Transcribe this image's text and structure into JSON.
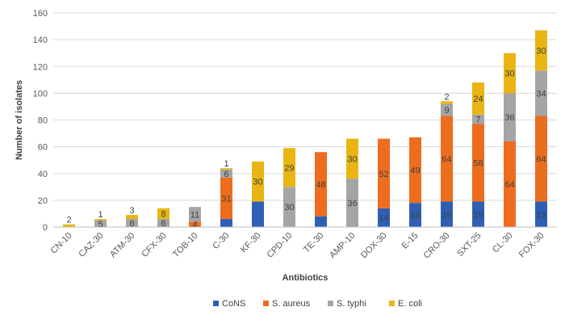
{
  "chart_data": {
    "type": "bar",
    "stacked": true,
    "categories": [
      "CN-10",
      "CAZ-30",
      "ATM-30",
      "CFX-30",
      "TOB-10",
      "C-30",
      "KF-30",
      "CPD-10",
      "TE-30",
      "AMP-10",
      "DOX-30",
      "E-15",
      "CRO-30",
      "SXT-25",
      "CL-30",
      "FOX-30"
    ],
    "series": [
      {
        "name": "CoNS",
        "color": "#2e5fb5",
        "values": [
          0,
          0,
          0,
          0,
          0,
          6,
          19,
          0,
          8,
          0,
          14,
          18,
          19,
          19,
          0,
          19
        ],
        "labels": [
          null,
          null,
          null,
          null,
          null,
          null,
          null,
          null,
          null,
          null,
          "14",
          "18",
          "19",
          "19",
          null,
          "19"
        ]
      },
      {
        "name": "S. aureus",
        "color": "#ed6d1f",
        "values": [
          0,
          0,
          0,
          0,
          4,
          31,
          0,
          0,
          48,
          0,
          52,
          49,
          64,
          58,
          64,
          64
        ],
        "labels": [
          null,
          null,
          null,
          null,
          "4",
          "31",
          null,
          null,
          "48",
          null,
          "52",
          "49",
          "64",
          "58",
          "64",
          "64"
        ]
      },
      {
        "name": "S. typhi",
        "color": "#a5a5a5",
        "values": [
          0,
          5,
          6,
          6,
          11,
          6,
          0,
          30,
          0,
          36,
          0,
          0,
          9,
          7,
          36,
          34
        ],
        "labels": [
          null,
          "5",
          "6",
          "6",
          "11",
          "6",
          null,
          "30",
          null,
          "36",
          null,
          null,
          "9",
          "7",
          "36",
          "34"
        ]
      },
      {
        "name": "E. coli",
        "color": "#e8b515",
        "values": [
          2,
          1,
          3,
          8,
          0,
          1,
          30,
          29,
          0,
          30,
          0,
          0,
          2,
          24,
          30,
          30
        ],
        "labels": [
          "2",
          "1",
          "3",
          "8",
          null,
          "1",
          "30",
          "29",
          null,
          "30",
          null,
          null,
          "2",
          "24",
          "30",
          "30"
        ]
      }
    ],
    "xlabel": "Antibiotics",
    "ylabel": "Number of isolates",
    "ylim": [
      0,
      160
    ],
    "yticks": [
      0,
      20,
      40,
      60,
      80,
      100,
      120,
      140,
      160
    ],
    "grid": true,
    "legend": "bottom"
  }
}
